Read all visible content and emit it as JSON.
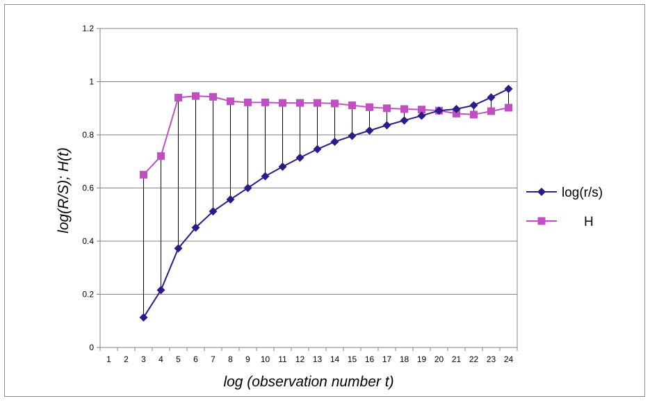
{
  "chart_data": {
    "type": "line",
    "title": "",
    "xlabel": "log (observation number t)",
    "ylabel": "log(R/S); H(t)",
    "x": [
      1,
      2,
      3,
      4,
      5,
      6,
      7,
      8,
      9,
      10,
      11,
      12,
      13,
      14,
      15,
      16,
      17,
      18,
      19,
      20,
      21,
      22,
      23,
      24
    ],
    "ylim": [
      0,
      1.2
    ],
    "yticks": [
      "0",
      "0.2",
      "0.4",
      "0.6",
      "0.8",
      "1",
      "1.2"
    ],
    "grid": "horizontal",
    "legend_position": "right",
    "drop_lines": true,
    "series": [
      {
        "name": "log(r/s)",
        "color": "#2e1a87",
        "marker": "diamond",
        "values": [
          null,
          null,
          0.113,
          0.216,
          0.373,
          0.451,
          0.512,
          0.557,
          0.6,
          0.644,
          0.68,
          0.714,
          0.746,
          0.774,
          0.796,
          0.816,
          0.836,
          0.854,
          0.872,
          0.891,
          0.897,
          0.911,
          0.941,
          0.973
        ]
      },
      {
        "name": "H",
        "color": "#c14fc4",
        "marker": "square",
        "values": [
          null,
          null,
          0.65,
          0.72,
          0.94,
          0.946,
          0.943,
          0.926,
          0.922,
          0.922,
          0.92,
          0.92,
          0.92,
          0.918,
          0.911,
          0.904,
          0.9,
          0.897,
          0.895,
          0.891,
          0.88,
          0.876,
          0.889,
          0.902
        ]
      }
    ]
  }
}
